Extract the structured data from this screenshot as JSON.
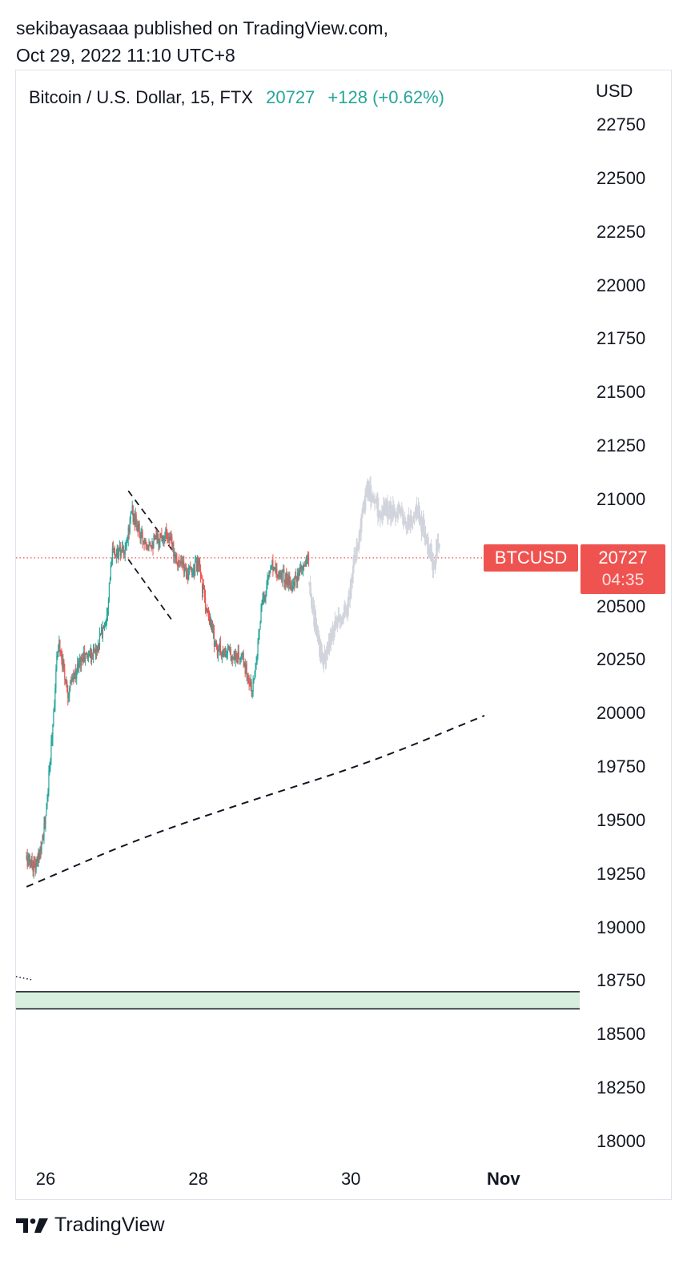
{
  "header": {
    "published_line": "sekibayasaaa published on TradingView.com,",
    "date_line": "Oct 29, 2022 11:10 UTC+8"
  },
  "legend": {
    "symbol_text": "Bitcoin / U.S. Dollar, 15, FTX",
    "last_price": "20727",
    "change": "+128 (+0.62%)"
  },
  "price_scale": {
    "currency": "USD",
    "ticks": [
      "22750",
      "22500",
      "22250",
      "22000",
      "21750",
      "21500",
      "21250",
      "21000",
      "20500",
      "20250",
      "20000",
      "19750",
      "19500",
      "19250",
      "19000",
      "18750",
      "18500",
      "18250",
      "18000"
    ]
  },
  "time_scale": {
    "ticks": [
      {
        "label": "26",
        "bold": false
      },
      {
        "label": "28",
        "bold": false
      },
      {
        "label": "30",
        "bold": false
      },
      {
        "label": "Nov",
        "bold": true
      }
    ]
  },
  "badges": {
    "symbol": "BTCUSD",
    "price": "20727",
    "countdown": "04:35"
  },
  "footer": {
    "brand": "TradingView"
  },
  "colors": {
    "up": "#26a69a",
    "down": "#ef5350",
    "projection": "#d1d4dc",
    "zone_fill": "#d8eedc",
    "badge": "#ef5350"
  },
  "chart_data": {
    "type": "candlestick",
    "title": "Bitcoin / U.S. Dollar, 15, FTX",
    "ylim": [
      17950,
      22900
    ],
    "last_price": 20727,
    "price_segments": [
      {
        "kind": "actual",
        "points": [
          [
            "Oct 25 18:00",
            19320
          ],
          [
            "Oct 25 21:00",
            19280
          ],
          [
            "Oct 26 00:00",
            19500
          ],
          [
            "Oct 26 02:00",
            19900
          ],
          [
            "Oct 26 04:00",
            20350
          ],
          [
            "Oct 26 07:00",
            20100
          ],
          [
            "Oct 26 11:00",
            20250
          ],
          [
            "Oct 26 16:00",
            20300
          ],
          [
            "Oct 26 19:00",
            20450
          ],
          [
            "Oct 26 21:00",
            20750
          ],
          [
            "Oct 27 01:00",
            20750
          ],
          [
            "Oct 27 03:00",
            20950
          ],
          [
            "Oct 27 06:00",
            20820
          ],
          [
            "Oct 27 10:00",
            20800
          ],
          [
            "Oct 27 14:00",
            20850
          ],
          [
            "Oct 27 18:00",
            20700
          ],
          [
            "Oct 27 21:00",
            20650
          ],
          [
            "Oct 28 00:00",
            20700
          ],
          [
            "Oct 28 03:00",
            20450
          ],
          [
            "Oct 28 06:00",
            20300
          ],
          [
            "Oct 28 10:00",
            20280
          ],
          [
            "Oct 28 14:00",
            20250
          ],
          [
            "Oct 28 17:00",
            20100
          ],
          [
            "Oct 28 20:00",
            20500
          ],
          [
            "Oct 28 23:00",
            20700
          ],
          [
            "Oct 29 02:00",
            20650
          ],
          [
            "Oct 29 06:00",
            20600
          ],
          [
            "Oct 29 11:00",
            20727
          ]
        ]
      },
      {
        "kind": "projection",
        "points": [
          [
            "Oct 29 11:00",
            20600
          ],
          [
            "Oct 29 13:00",
            20400
          ],
          [
            "Oct 29 15:00",
            20250
          ],
          [
            "Oct 29 19:00",
            20400
          ],
          [
            "Oct 29 23:00",
            20500
          ],
          [
            "Oct 30 02:00",
            20800
          ],
          [
            "Oct 30 05:00",
            21050
          ],
          [
            "Oct 30 09:00",
            20950
          ],
          [
            "Oct 30 14:00",
            20950
          ],
          [
            "Oct 30 18:00",
            20900
          ],
          [
            "Oct 30 21:00",
            20950
          ],
          [
            "Oct 31 00:00",
            20800
          ],
          [
            "Oct 31 02:00",
            20700
          ],
          [
            "Oct 31 04:00",
            20850
          ]
        ]
      }
    ],
    "drawings": {
      "channel_upper": [
        [
          "Oct 27 02:00",
          21040
        ],
        [
          "Oct 27 16:00",
          20760
        ]
      ],
      "channel_lower": [
        [
          "Oct 27 02:00",
          20720
        ],
        [
          "Oct 27 16:00",
          20430
        ]
      ],
      "curve": [
        [
          "Oct 25 18:00",
          19190
        ],
        [
          "Oct 27 06:00",
          19420
        ],
        [
          "Oct 28 18:00",
          19600
        ],
        [
          "Oct 30 06:00",
          19770
        ],
        [
          "Oct 31 18:00",
          19990
        ]
      ],
      "price_line": 20727,
      "zone": [
        18620,
        18700
      ]
    }
  }
}
